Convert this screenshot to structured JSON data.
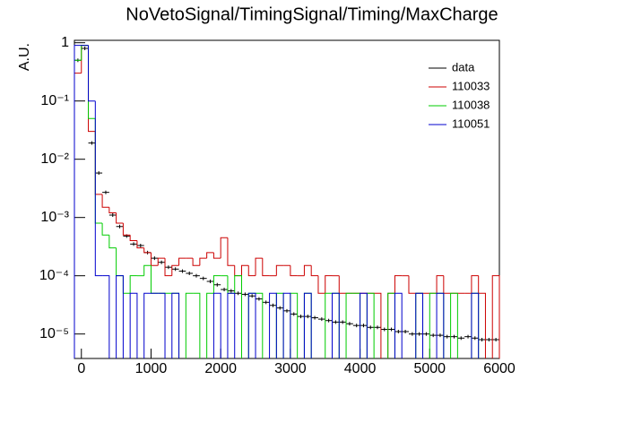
{
  "chart_data": {
    "type": "histogram",
    "title": "NoVetoSignal/TimingSignal/Timing/MaxCharge",
    "y_label": "A.U.",
    "log_y": true,
    "legend": "upper right",
    "bins": [
      -100,
      0,
      100,
      200,
      300,
      400,
      500,
      600,
      700,
      800,
      900,
      1000,
      1100,
      1200,
      1300,
      1400,
      1500,
      1600,
      1700,
      1800,
      1900,
      2000,
      2100,
      2200,
      2300,
      2400,
      2500,
      2600,
      2700,
      2800,
      2900,
      3000,
      3100,
      3200,
      3300,
      3400,
      3500,
      3600,
      3700,
      3800,
      3900,
      4000,
      4100,
      4200,
      4300,
      4400,
      4500,
      4600,
      4700,
      4800,
      4900,
      5000,
      5100,
      5200,
      5300,
      5400,
      5500,
      5600,
      5700,
      5800,
      5900,
      6000
    ],
    "xlim": [
      -100,
      6000
    ],
    "xticks": [
      0,
      1000,
      2000,
      3000,
      4000,
      5000,
      6000
    ],
    "ylim": [
      3.8e-06,
      1.1
    ],
    "yticks": [
      {
        "value": 1e-05,
        "label": "10⁻⁵"
      },
      {
        "value": 0.0001,
        "label": "10⁻⁴"
      },
      {
        "value": 0.001,
        "label": "10⁻³"
      },
      {
        "value": 0.01,
        "label": "10⁻²"
      },
      {
        "value": 0.1,
        "label": "10⁻¹"
      },
      1
    ],
    "series": [
      {
        "name": "data",
        "color": "#000000",
        "style": "points",
        "values": [
          0.5,
          0.8,
          0.019,
          0.0058,
          0.0027,
          0.0011,
          0.0007,
          0.00048,
          0.00035,
          0.00033,
          0.00025,
          0.0002,
          0.00017,
          0.00014,
          0.00013,
          0.00012,
          0.00011,
          0.0001,
          9e-05,
          8e-05,
          7e-05,
          5.8e-05,
          5.5e-05,
          5e-05,
          4.8e-05,
          4.5e-05,
          4e-05,
          3.5e-05,
          3.1e-05,
          2.8e-05,
          2.5e-05,
          2.2e-05,
          2e-05,
          2e-05,
          1.9e-05,
          1.8e-05,
          1.7e-05,
          1.6e-05,
          1.6e-05,
          1.5e-05,
          1.4e-05,
          1.4e-05,
          1.3e-05,
          1.3e-05,
          1.2e-05,
          1.2e-05,
          1.1e-05,
          1.1e-05,
          1e-05,
          1e-05,
          1e-05,
          9.5e-06,
          9.5e-06,
          9e-06,
          9e-06,
          8.5e-06,
          9e-06,
          8.5e-06,
          8e-06,
          8e-06,
          8e-06
        ]
      },
      {
        "name": "110033",
        "color": "#cc0000",
        "style": "step",
        "values": [
          0.3,
          0.9,
          0.03,
          0.0025,
          0.0015,
          0.0012,
          0.0008,
          0.0005,
          0.0004,
          0.0003,
          0.00025,
          0.00015,
          0.0002,
          0.0001,
          0.00015,
          0.0002,
          0.0002,
          0.00015,
          0.0002,
          0.00025,
          0.0002,
          0.00045,
          0.00015,
          0.0001,
          0.00015,
          0.0001,
          0.0002,
          0.0001,
          0.0001,
          0.00015,
          0.00015,
          0.0001,
          0.0001,
          0.00015,
          0.0001,
          5e-05,
          0.0001,
          0.0001,
          5e-05,
          5e-05,
          5e-05,
          5e-05,
          5e-05,
          5e-05,
          null,
          5e-05,
          0.0001,
          0.0001,
          5e-05,
          5e-05,
          5e-05,
          5e-05,
          0.0001,
          5e-05,
          5e-05,
          5e-05,
          5e-05,
          0.0001,
          5e-05,
          null,
          0.0001
        ]
      },
      {
        "name": "110038",
        "color": "#00cc00",
        "style": "step",
        "values": [
          0.5,
          0.9,
          0.05,
          0.0008,
          0.0005,
          0.0003,
          0.0001,
          5e-05,
          0.0001,
          0.0001,
          0.00015,
          5e-05,
          5e-05,
          5e-05,
          5e-05,
          null,
          5e-05,
          5e-05,
          null,
          5e-05,
          0.0001,
          0.0001,
          5e-05,
          0.0001,
          null,
          5e-05,
          5e-05,
          null,
          null,
          5e-05,
          null,
          5e-05,
          null,
          5e-05,
          null,
          null,
          5e-05,
          5e-05,
          null,
          5e-05,
          5e-05,
          null,
          5e-05,
          null,
          null,
          5e-05,
          null,
          null,
          null,
          5e-05,
          null,
          5e-05,
          5e-05,
          null,
          5e-05,
          null,
          null,
          5e-05,
          null,
          null,
          null
        ]
      },
      {
        "name": "110051",
        "color": "#0000cc",
        "style": "step",
        "values": [
          0.9,
          0.9,
          0.1,
          0.0001,
          0.0001,
          null,
          0.0001,
          null,
          5e-05,
          null,
          5e-05,
          5e-05,
          5e-05,
          null,
          5e-05,
          null,
          null,
          null,
          null,
          null,
          5e-05,
          null,
          5e-05,
          null,
          null,
          5e-05,
          null,
          null,
          5e-05,
          null,
          5e-05,
          null,
          null,
          5e-05,
          null,
          null,
          null,
          5e-05,
          null,
          null,
          null,
          5e-05,
          null,
          null,
          null,
          null,
          5e-05,
          null,
          null,
          5e-05,
          null,
          null,
          5e-05,
          null,
          null,
          null,
          null,
          5e-05,
          null,
          null,
          null
        ]
      }
    ]
  }
}
